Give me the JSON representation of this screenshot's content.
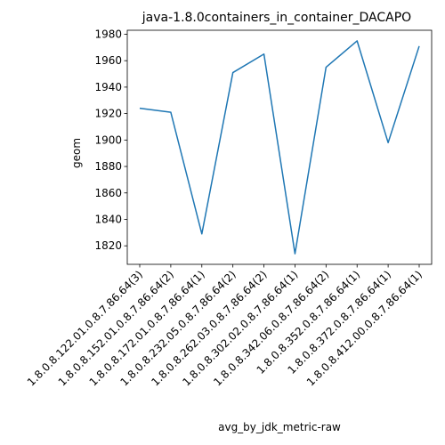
{
  "chart_data": {
    "type": "line",
    "title": "java-1.8.0containers_in_container_DACAPO",
    "xlabel": "avg_by_jdk_metric-raw",
    "ylabel": "geom",
    "categories": [
      "1.8.0.8.122.01.0.8.7.86.64(3)",
      "1.8.0.8.152.01.0.8.7.86.64(2)",
      "1.8.0.8.172.01.0.8.7.86.64(1)",
      "1.8.0.8.232.05.0.8.7.86.64(2)",
      "1.8.0.8.262.03.0.8.7.86.64(2)",
      "1.8.0.8.302.02.0.8.7.86.64(1)",
      "1.8.0.8.342.06.0.8.7.86.64(2)",
      "1.8.0.8.352.0.8.7.86.64(1)",
      "1.8.0.8.372.0.8.7.86.64(1)",
      "1.8.0.8.412.00.0.8.7.86.64(1)"
    ],
    "series": [
      {
        "values": [
          1924,
          1921,
          1829,
          1951,
          1965,
          1814,
          1955,
          1975,
          1898,
          1971
        ],
        "color": "#1f77b4"
      }
    ],
    "yticks": [
      1820,
      1840,
      1860,
      1880,
      1900,
      1920,
      1940,
      1960,
      1980
    ],
    "ylim": [
      1806,
      1983
    ],
    "grid": false
  }
}
